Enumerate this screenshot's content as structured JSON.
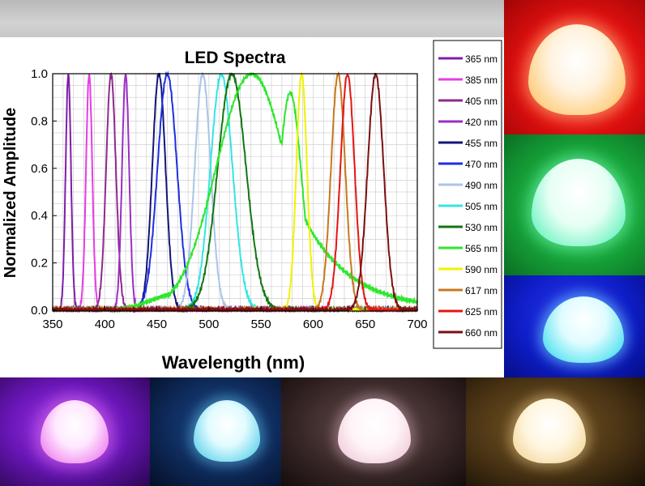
{
  "chart_data": {
    "type": "line",
    "title": "LED Spectra",
    "xlabel": "Wavelength (nm)",
    "ylabel": "Normalized Amplitude",
    "xlim": [
      350,
      700
    ],
    "ylim": [
      0,
      1
    ],
    "grid": true,
    "legend_position": "right",
    "x_ticks": [
      "350",
      "400",
      "450",
      "500",
      "550",
      "600",
      "650",
      "700"
    ],
    "y_ticks": [
      "0.0",
      "0.2",
      "0.4",
      "0.6",
      "0.8",
      "1.0"
    ],
    "series": [
      {
        "name": "365 nm",
        "color": "#7f1ea8",
        "peak": 365,
        "fwhm": 6
      },
      {
        "name": "385 nm",
        "color": "#e63ce6",
        "peak": 385,
        "fwhm": 7
      },
      {
        "name": "405 nm",
        "color": "#8e2a8e",
        "peak": 406,
        "fwhm": 11
      },
      {
        "name": "420 nm",
        "color": "#9a2fc4",
        "peak": 420,
        "fwhm": 8
      },
      {
        "name": "455 nm",
        "color": "#141478",
        "peak": 452,
        "fwhm": 15
      },
      {
        "name": "470 nm",
        "color": "#1c2fe0",
        "peak": 460,
        "fwhm": 22
      },
      {
        "name": "490 nm",
        "color": "#a9c5e8",
        "peak": 494,
        "fwhm": 18
      },
      {
        "name": "505 nm",
        "color": "#33e5e5",
        "peak": 512,
        "fwhm": 25
      },
      {
        "name": "530 nm",
        "color": "#127512",
        "peak": 522,
        "fwhm": 32
      },
      {
        "name": "565 nm",
        "color": "#2ee62e",
        "peak": 541,
        "fwhm": 80
      },
      {
        "name": "590 nm",
        "color": "#f2f200",
        "peak": 589,
        "fwhm": 12
      },
      {
        "name": "617 nm",
        "color": "#c8781e",
        "peak": 624,
        "fwhm": 16
      },
      {
        "name": "625 nm",
        "color": "#e61414",
        "peak": 633,
        "fwhm": 16
      },
      {
        "name": "660 nm",
        "color": "#7a1010",
        "peak": 660,
        "fwhm": 18
      }
    ]
  },
  "photos": [
    {
      "name": "bulb-red",
      "color": "#ff2a22"
    },
    {
      "name": "bulb-green",
      "color": "#22c247"
    },
    {
      "name": "bulb-blue",
      "color": "#0a1fd6"
    },
    {
      "name": "bulb-violet",
      "color": "#8c22d8"
    },
    {
      "name": "bulb-cyan",
      "color": "#3aa8e0"
    },
    {
      "name": "bulb-pink",
      "color": "#f1c6d8"
    },
    {
      "name": "bulb-warm",
      "color": "#f6ddaa"
    }
  ]
}
